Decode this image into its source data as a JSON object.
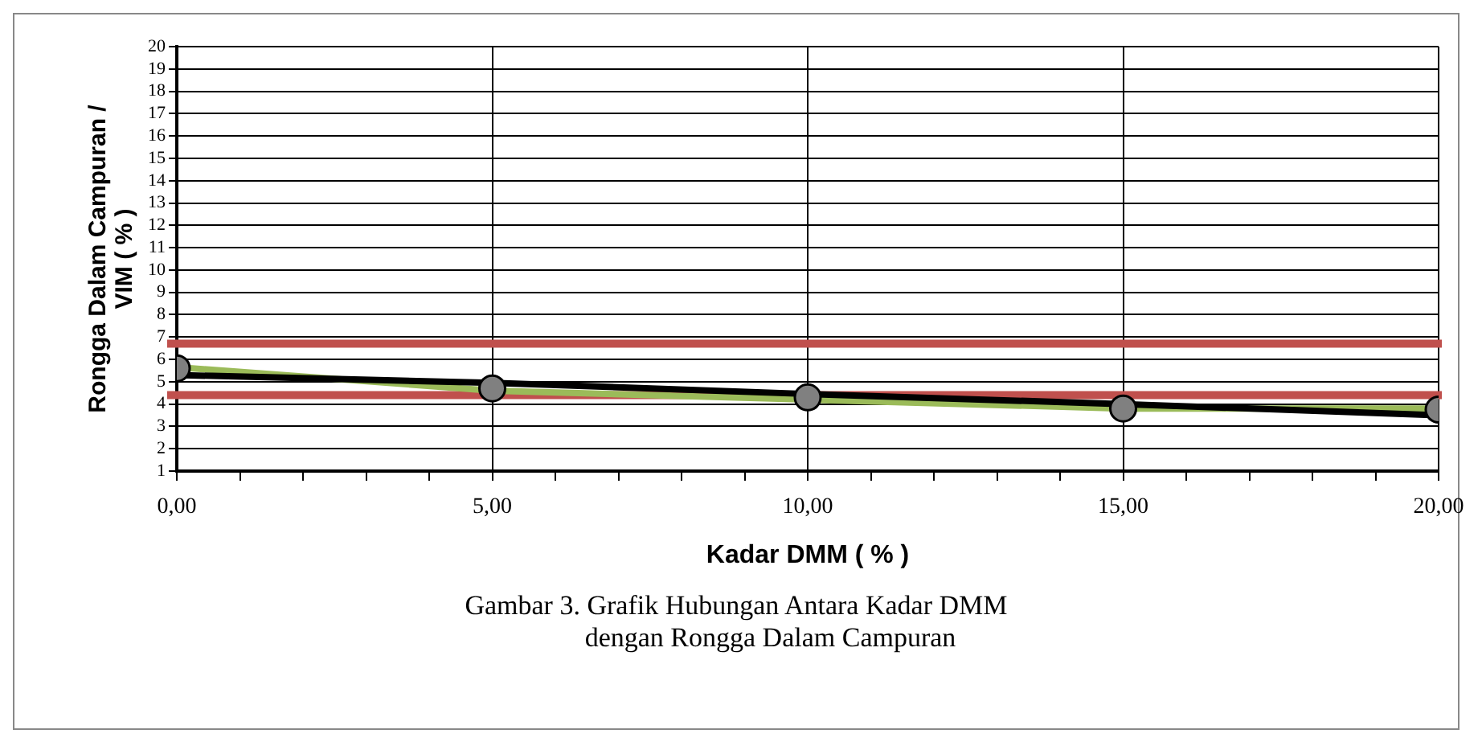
{
  "chart_data": {
    "type": "scatter",
    "xlabel": "Kadar DMM ( % )",
    "ylabel": "Rongga Dalam Campuran /\nVIM ( % )",
    "annotations": [
      "Gambar 3. Grafik Hubungan Antara Kadar DMM\n          dengan Rongga Dalam Campuran"
    ],
    "series": [
      {
        "color": "#808080",
        "marker": "circle",
        "x": [
          0,
          5,
          10,
          15,
          20
        ],
        "values": [
          5.6,
          4.7,
          4.3,
          3.8,
          3.75
        ]
      },
      {
        "type": "line",
        "color": "#9bbb59",
        "marker": "none",
        "x": [
          0,
          5,
          10,
          15,
          20
        ],
        "values": [
          5.65,
          4.6,
          4.2,
          3.8,
          3.8
        ]
      },
      {
        "type": "line",
        "color": "#000000",
        "marker": "none",
        "x": [
          0,
          5,
          10,
          15,
          20
        ],
        "values": [
          5.3,
          4.95,
          4.45,
          4.0,
          3.5
        ]
      }
    ],
    "ref_lines": [
      {
        "axis": "y",
        "value": 6.7,
        "color": "#c0504d"
      },
      {
        "axis": "y",
        "value": 4.4,
        "color": "#c0504d"
      }
    ],
    "xlim": [
      0,
      20
    ],
    "xticks": [
      {
        "value": 0,
        "label": "0,00"
      },
      {
        "value": 1,
        "label": null
      },
      {
        "value": 2,
        "label": null
      },
      {
        "value": 3,
        "label": null
      },
      {
        "value": 4,
        "label": null
      },
      {
        "value": 5,
        "label": "5,00"
      },
      {
        "value": 6,
        "label": null
      },
      {
        "value": 7,
        "label": null
      },
      {
        "value": 8,
        "label": null
      },
      {
        "value": 9,
        "label": null
      },
      {
        "value": 10,
        "label": "10,00"
      },
      {
        "value": 11,
        "label": null
      },
      {
        "value": 12,
        "label": null
      },
      {
        "value": 13,
        "label": null
      },
      {
        "value": 14,
        "label": null
      },
      {
        "value": 15,
        "label": "15,00"
      },
      {
        "value": 16,
        "label": null
      },
      {
        "value": 17,
        "label": null
      },
      {
        "value": 18,
        "label": null
      },
      {
        "value": 19,
        "label": null
      },
      {
        "value": 20,
        "label": "20,00"
      }
    ],
    "ylim": [
      1,
      20
    ],
    "yticks": [
      1,
      2,
      3,
      4,
      5,
      6,
      7,
      8,
      9,
      10,
      11,
      12,
      13,
      14,
      15,
      16,
      17,
      18,
      19,
      20
    ],
    "grid": true,
    "legend": false
  }
}
